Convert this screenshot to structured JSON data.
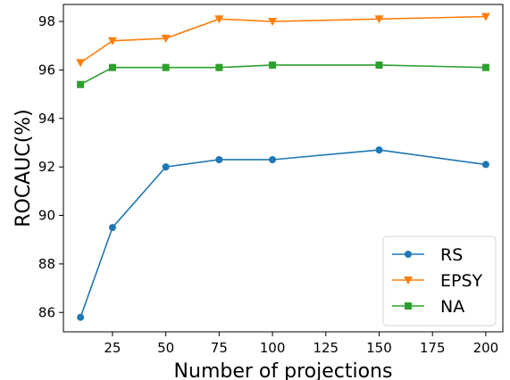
{
  "chart_data": {
    "type": "line",
    "title": "",
    "xlabel": "Number of projections",
    "ylabel": "ROCAUC(%)",
    "x": [
      10,
      25,
      50,
      75,
      100,
      150,
      200
    ],
    "xlim": [
      2,
      208
    ],
    "ylim": [
      85.2,
      98.7
    ],
    "xticks": [
      25,
      50,
      75,
      100,
      125,
      150,
      175,
      200
    ],
    "yticks": [
      86,
      88,
      90,
      92,
      94,
      96,
      98
    ],
    "grid": false,
    "legend_position": "lower-right",
    "series": [
      {
        "name": "RS",
        "color": "#1f77b4",
        "marker": "circle",
        "values": [
          85.8,
          89.5,
          92.0,
          92.3,
          92.3,
          92.7,
          92.1
        ]
      },
      {
        "name": "EPSY",
        "color": "#ff7f0e",
        "marker": "triangle-down",
        "values": [
          96.3,
          97.2,
          97.3,
          98.1,
          98.0,
          98.1,
          98.2
        ]
      },
      {
        "name": "NA",
        "color": "#2ca02c",
        "marker": "square",
        "values": [
          95.4,
          96.1,
          96.1,
          96.1,
          96.2,
          96.2,
          96.1
        ]
      }
    ]
  }
}
